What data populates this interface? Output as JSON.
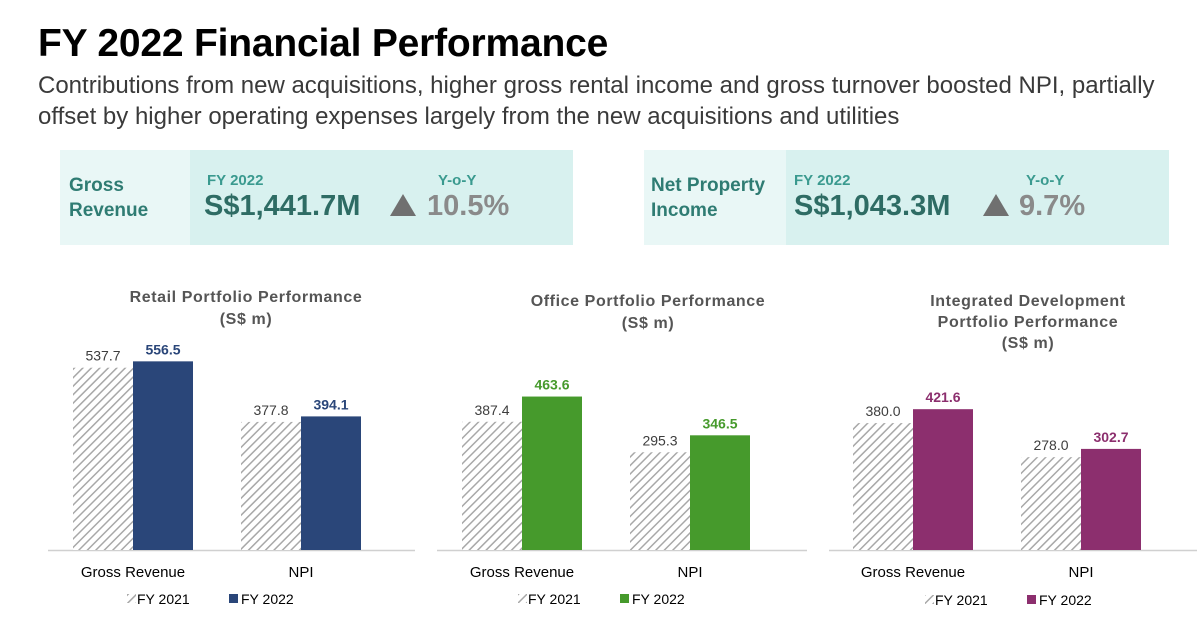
{
  "title": "FY 2022 Financial Performance",
  "subtitle": "Contributions from new acquisitions, higher gross rental income and gross turnover boosted NPI, partially offset by higher operating expenses largely from the new acquisitions and utilities",
  "kpis": [
    {
      "label_line1": "Gross",
      "label_line2": "Revenue",
      "fy_label": "FY 2022",
      "value": "S$1,441.7M",
      "yoy_label": "Y-o-Y",
      "yoy_value": "10.5%"
    },
    {
      "label_line1": "Net Property",
      "label_line2": "Income",
      "fy_label": "FY 2022",
      "value": "S$1,043.3M",
      "yoy_label": "Y-o-Y",
      "yoy_value": "9.7%"
    }
  ],
  "chart_data": [
    {
      "type": "bar",
      "title_lines": [
        "Retail Portfolio Performance",
        "(S$ m)"
      ],
      "categories": [
        "Gross Revenue",
        "NPI"
      ],
      "series": [
        {
          "name": "FY 2021",
          "values": [
            537.7,
            377.8
          ],
          "color": "#b5b5b5",
          "pattern": "hatched"
        },
        {
          "name": "FY 2022",
          "values": [
            556.5,
            394.1
          ],
          "color": "#2a4679"
        }
      ],
      "value_labels_fy2021": [
        "537.7",
        "377.8"
      ],
      "value_labels_fy2022": [
        "556.5",
        "394.1"
      ],
      "legend_position": "bottom"
    },
    {
      "type": "bar",
      "title_lines": [
        "Office Portfolio Performance",
        "(S$ m)"
      ],
      "categories": [
        "Gross Revenue",
        "NPI"
      ],
      "series": [
        {
          "name": "FY 2021",
          "values": [
            387.4,
            295.3
          ],
          "color": "#b5b5b5",
          "pattern": "hatched"
        },
        {
          "name": "FY 2022",
          "values": [
            463.6,
            346.5
          ],
          "color": "#469a2c"
        }
      ],
      "value_labels_fy2021": [
        "387.4",
        "295.3"
      ],
      "value_labels_fy2022": [
        "463.6",
        "346.5"
      ],
      "legend_position": "bottom"
    },
    {
      "type": "bar",
      "title_lines": [
        "Integrated Development",
        "Portfolio Performance",
        "(S$ m)"
      ],
      "categories": [
        "Gross Revenue",
        "NPI"
      ],
      "series": [
        {
          "name": "FY 2021",
          "values": [
            380.0,
            278.0
          ],
          "color": "#b5b5b5",
          "pattern": "hatched"
        },
        {
          "name": "FY 2022",
          "values": [
            421.6,
            302.7
          ],
          "color": "#8c2f6e"
        }
      ],
      "value_labels_fy2021": [
        "380.0",
        "278.0"
      ],
      "value_labels_fy2022": [
        "421.6",
        "302.7"
      ],
      "legend_position": "bottom"
    }
  ]
}
